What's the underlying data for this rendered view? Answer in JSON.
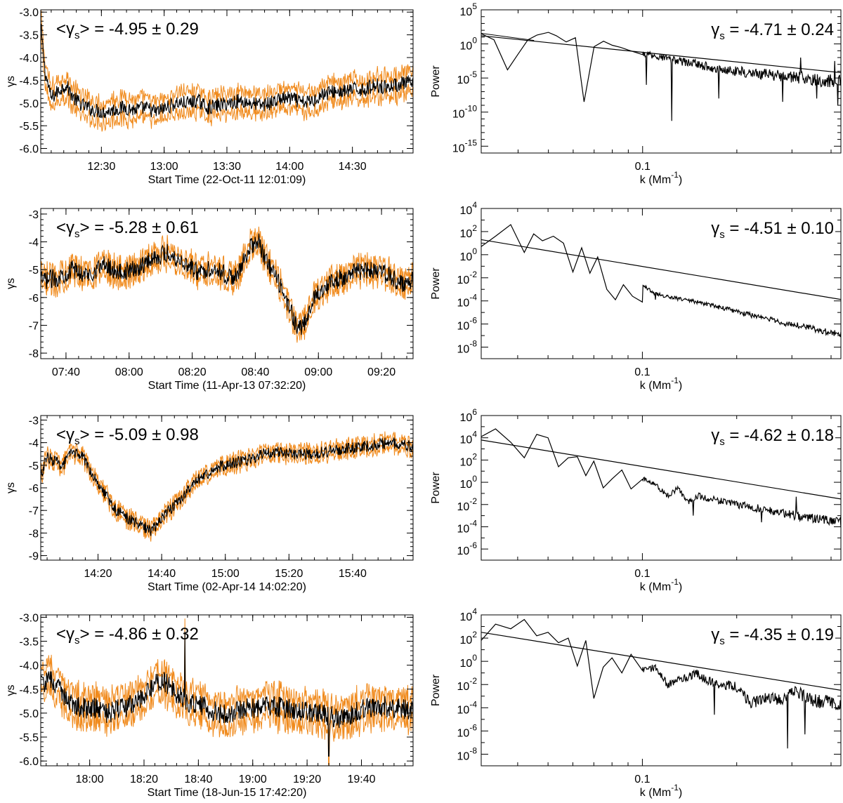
{
  "chart_data": [
    {
      "type": "line",
      "panel": "time-series",
      "row": 1,
      "title": "",
      "xlabel": "Start Time (22-Oct-11 12:01:09)",
      "ylabel": "γs",
      "annotation": {
        "prefix": "<γ",
        "sub": "s",
        "suffix": "> = -4.95 ± 0.29"
      },
      "xlim_min": [
        0,
        178
      ],
      "xtick_min": [
        29,
        59,
        89,
        119,
        149
      ],
      "xtick_labels": [
        "12:30",
        "13:00",
        "13:30",
        "14:00",
        "14:30"
      ],
      "ylim": [
        -6.1,
        -2.95
      ],
      "yticks": [
        -6.0,
        -5.5,
        -5.0,
        -4.5,
        -4.0,
        -3.5,
        -3.0
      ],
      "ytick_labels": [
        "-6.0",
        "-5.5",
        "-5.0",
        "-4.5",
        "-4.0",
        "-3.5",
        "-3.0"
      ],
      "x": [
        0,
        2,
        5,
        8,
        12,
        16,
        20,
        25,
        30,
        35,
        40,
        45,
        50,
        55,
        60,
        65,
        70,
        75,
        80,
        85,
        90,
        95,
        100,
        105,
        110,
        115,
        120,
        125,
        130,
        135,
        140,
        145,
        150,
        155,
        160,
        165,
        170,
        175,
        178
      ],
      "series": [
        {
          "name": "uncertainty",
          "color": "#f08a1c",
          "spread": 0.22
        },
        {
          "name": "gamma_s",
          "color": "#000000",
          "values": [
            -3.3,
            -4.3,
            -4.9,
            -4.75,
            -4.6,
            -4.9,
            -5.05,
            -5.15,
            -5.2,
            -5.15,
            -5.1,
            -5.15,
            -5.1,
            -5.2,
            -5.1,
            -5.0,
            -5.0,
            -4.95,
            -5.1,
            -5.05,
            -5.0,
            -4.95,
            -5.0,
            -5.05,
            -5.0,
            -4.9,
            -4.9,
            -5.0,
            -4.95,
            -4.8,
            -4.75,
            -4.75,
            -4.7,
            -4.7,
            -4.6,
            -4.65,
            -4.6,
            -4.55,
            -4.6
          ],
          "noise": 0.16
        }
      ]
    },
    {
      "type": "line",
      "panel": "power-spectrum",
      "row": 1,
      "xlabel": "k (Mm",
      "xlabel_sup": "-1",
      "xlabel_end": ")",
      "ylabel": "Power",
      "annotation": {
        "prefix": "γ",
        "sub": "s",
        "suffix": " = -4.71 ± 0.24"
      },
      "xscale": "log",
      "yscale": "log",
      "xlim": [
        0.0305,
        0.43
      ],
      "xtick_major": [
        0.1
      ],
      "xtick_major_labels": [
        "0.1"
      ],
      "ylim_exp": [
        -16,
        5
      ],
      "ytick_exps": [
        5,
        0,
        -5,
        -10,
        -15
      ],
      "ytick_mant": [
        "10",
        "10",
        "10",
        "10",
        "10"
      ],
      "ytick_sup": [
        "5",
        "0",
        "-5",
        "-10",
        "-15"
      ],
      "fit": {
        "slope": -4.71,
        "log10_at_kmin": 1.2
      },
      "spectrum": {
        "k": [
          0.0305,
          0.0335,
          0.037,
          0.04,
          0.043,
          0.046,
          0.05,
          0.053,
          0.057,
          0.061,
          0.065,
          0.07,
          0.075,
          0.08,
          0.085,
          0.09,
          0.1,
          0.11,
          0.12,
          0.13,
          0.14,
          0.15,
          0.16,
          0.17,
          0.18,
          0.2,
          0.22,
          0.25,
          0.28,
          0.31,
          0.35,
          0.39,
          0.43
        ],
        "log10_power": [
          1.5,
          0.6,
          -3.8,
          -1.5,
          0.6,
          1.3,
          1.7,
          1.2,
          0.3,
          0.9,
          -0.6,
          -0.4,
          0.4,
          -0.2,
          -0.5,
          -0.9,
          -1.3,
          -1.8,
          -2.2,
          -2.5,
          -2.7,
          -3.0,
          -3.3,
          -3.5,
          -3.8,
          -4.0,
          -4.3,
          -4.5,
          -4.8,
          -4.9,
          -5.2,
          -5.4,
          -5.6
        ],
        "dips": [
          {
            "k": 0.066,
            "log10": -8.5
          },
          {
            "k": 0.103,
            "log10": -6.0
          },
          {
            "k": 0.124,
            "log10": -11.3
          },
          {
            "k": 0.175,
            "log10": -8.0
          },
          {
            "k": 0.28,
            "log10": -8.5
          },
          {
            "k": 0.36,
            "log10": -8.0
          },
          {
            "k": 0.42,
            "log10": -9.0
          }
        ],
        "peaks": [
          {
            "k": 0.32,
            "log10": -2.0
          },
          {
            "k": 0.41,
            "log10": -2.5
          }
        ],
        "noise": 0.9
      }
    },
    {
      "type": "line",
      "panel": "time-series",
      "row": 2,
      "title": "",
      "xlabel": "Start Time (11-Apr-13 07:32:20)",
      "ylabel": "γs",
      "annotation": {
        "prefix": "<γ",
        "sub": "s",
        "suffix": "> = -5.28 ± 0.61"
      },
      "xlim_min": [
        0,
        118
      ],
      "xtick_min": [
        8,
        28,
        48,
        68,
        88,
        108
      ],
      "xtick_labels": [
        "07:40",
        "08:00",
        "08:20",
        "08:40",
        "09:00",
        "09:20"
      ],
      "ylim": [
        -8.2,
        -2.8
      ],
      "yticks": [
        -8,
        -7,
        -6,
        -5,
        -4,
        -3
      ],
      "ytick_labels": [
        "-8",
        "-7",
        "-6",
        "-5",
        "-4",
        "-3"
      ],
      "x": [
        0,
        5,
        10,
        15,
        20,
        25,
        30,
        35,
        40,
        45,
        50,
        55,
        60,
        63,
        66,
        69,
        71,
        73,
        75,
        77,
        79,
        81,
        83,
        85,
        87,
        90,
        95,
        100,
        105,
        110,
        115,
        118
      ],
      "series": [
        {
          "name": "uncertainty",
          "color": "#f08a1c",
          "spread": 0.28
        },
        {
          "name": "gamma_s",
          "color": "#000000",
          "values": [
            -5.4,
            -5.3,
            -5.0,
            -5.2,
            -4.8,
            -5.1,
            -5.0,
            -4.6,
            -4.4,
            -4.7,
            -5.1,
            -4.9,
            -5.3,
            -5.1,
            -4.2,
            -4.0,
            -4.6,
            -5.0,
            -5.4,
            -5.9,
            -6.4,
            -7.0,
            -7.1,
            -6.6,
            -5.9,
            -5.6,
            -5.3,
            -5.1,
            -5.0,
            -5.2,
            -5.6,
            -5.3
          ],
          "noise": 0.34
        }
      ]
    },
    {
      "type": "line",
      "panel": "power-spectrum",
      "row": 2,
      "xlabel": "k (Mm",
      "xlabel_sup": "-1",
      "xlabel_end": ")",
      "ylabel": "Power",
      "annotation": {
        "prefix": "γ",
        "sub": "s",
        "suffix": " = -4.51 ± 0.10"
      },
      "xscale": "log",
      "yscale": "log",
      "xlim": [
        0.0306,
        0.43
      ],
      "xtick_major": [
        0.1
      ],
      "xtick_major_labels": [
        "0.1"
      ],
      "ylim_exp": [
        -9,
        4
      ],
      "ytick_exps": [
        4,
        2,
        0,
        -2,
        -4,
        -6,
        -8
      ],
      "ytick_mant": [
        "10",
        "10",
        "10",
        "10",
        "10",
        "10",
        "10"
      ],
      "ytick_sup": [
        "4",
        "2",
        "0",
        "-2",
        "-4",
        "-6",
        "-8"
      ],
      "fit": {
        "slope": -4.51,
        "log10_at_kmin": 1.3
      },
      "spectrum": {
        "k": [
          0.0306,
          0.034,
          0.038,
          0.042,
          0.045,
          0.048,
          0.052,
          0.056,
          0.06,
          0.064,
          0.068,
          0.072,
          0.077,
          0.082,
          0.087,
          0.093,
          0.1,
          0.11,
          0.12,
          0.13,
          0.14,
          0.16,
          0.18,
          0.2,
          0.22,
          0.25,
          0.28,
          0.31,
          0.35,
          0.39,
          0.43
        ],
        "log10_power": [
          0.7,
          1.6,
          2.6,
          0.2,
          1.8,
          1.2,
          1.6,
          1.0,
          -1.5,
          0.6,
          -1.6,
          -0.2,
          -3.0,
          -1.8,
          -2.6,
          -3.6,
          -2.6,
          -3.4,
          -3.6,
          -3.8,
          -3.9,
          -4.3,
          -4.6,
          -4.9,
          -5.2,
          -5.5,
          -5.9,
          -6.1,
          -6.4,
          -6.7,
          -6.9
        ],
        "dips": [
          {
            "k": 0.081,
            "log10": -3.9
          },
          {
            "k": 0.098,
            "log10": -4.1
          },
          {
            "k": 0.11,
            "log10": -3.9
          }
        ],
        "peaks": [],
        "noise": 0.25
      }
    },
    {
      "type": "line",
      "panel": "time-series",
      "row": 3,
      "title": "",
      "xlabel": "Start Time (02-Apr-14 14:02:20)",
      "ylabel": "γs",
      "annotation": {
        "prefix": "<γ",
        "sub": "s",
        "suffix": "> = -5.09 ± 0.98"
      },
      "xlim_min": [
        0,
        117
      ],
      "xtick_min": [
        18,
        38,
        58,
        78,
        98
      ],
      "xtick_labels": [
        "14:20",
        "14:40",
        "15:00",
        "15:20",
        "15:40"
      ],
      "ylim": [
        -9.2,
        -2.8
      ],
      "yticks": [
        -9,
        -8,
        -7,
        -6,
        -5,
        -4,
        -3
      ],
      "ytick_labels": [
        "-9",
        "-8",
        "-7",
        "-6",
        "-5",
        "-4",
        "-3"
      ],
      "x": [
        0,
        2,
        4,
        7,
        10,
        13,
        16,
        20,
        23,
        26,
        29,
        32,
        35,
        38,
        41,
        44,
        47,
        50,
        55,
        60,
        65,
        70,
        75,
        80,
        85,
        90,
        95,
        100,
        105,
        110,
        115,
        117
      ],
      "series": [
        {
          "name": "uncertainty",
          "color": "#f08a1c",
          "spread": 0.22
        },
        {
          "name": "gamma_s",
          "color": "#000000",
          "values": [
            -5.5,
            -4.6,
            -4.8,
            -5.0,
            -4.4,
            -4.6,
            -5.3,
            -6.2,
            -6.9,
            -7.2,
            -7.5,
            -7.7,
            -7.9,
            -7.3,
            -6.9,
            -6.5,
            -6.0,
            -5.6,
            -5.1,
            -4.9,
            -4.8,
            -4.5,
            -4.4,
            -4.5,
            -4.5,
            -4.4,
            -4.3,
            -4.2,
            -4.1,
            -4.0,
            -4.1,
            -4.2
          ],
          "noise": 0.26
        }
      ]
    },
    {
      "type": "line",
      "panel": "power-spectrum",
      "row": 3,
      "xlabel": "k (Mm",
      "xlabel_sup": "-1",
      "xlabel_end": ")",
      "ylabel": "Power",
      "annotation": {
        "prefix": "γ",
        "sub": "s",
        "suffix": " = -4.62 ± 0.18"
      },
      "xscale": "log",
      "yscale": "log",
      "xlim": [
        0.0306,
        0.43
      ],
      "xtick_major": [
        0.1
      ],
      "xtick_major_labels": [
        "0.1"
      ],
      "ylim_exp": [
        -7,
        6
      ],
      "ytick_exps": [
        6,
        4,
        2,
        0,
        -2,
        -4,
        -6
      ],
      "ytick_mant": [
        "10",
        "10",
        "10",
        "10",
        "10",
        "10",
        "10"
      ],
      "ytick_sup": [
        "6",
        "4",
        "2",
        "0",
        "-2",
        "-4",
        "-6"
      ],
      "fit": {
        "slope": -4.62,
        "log10_at_kmin": 3.8
      },
      "spectrum": {
        "k": [
          0.0306,
          0.034,
          0.038,
          0.042,
          0.046,
          0.05,
          0.054,
          0.058,
          0.062,
          0.066,
          0.07,
          0.075,
          0.08,
          0.086,
          0.092,
          0.1,
          0.11,
          0.12,
          0.13,
          0.14,
          0.15,
          0.16,
          0.18,
          0.2,
          0.22,
          0.25,
          0.28,
          0.31,
          0.35,
          0.39,
          0.43
        ],
        "log10_power": [
          4.1,
          4.8,
          3.6,
          2.2,
          4.3,
          4.0,
          1.4,
          2.2,
          2.3,
          0.6,
          1.9,
          -0.5,
          0.3,
          1.1,
          -0.6,
          0.3,
          -0.2,
          -1.2,
          -0.6,
          -1.8,
          -1.2,
          -1.4,
          -1.7,
          -2.0,
          -2.2,
          -2.5,
          -2.7,
          -3.0,
          -3.2,
          -3.4,
          -3.6
        ],
        "dips": [
          {
            "k": 0.145,
            "log10": -3.0
          },
          {
            "k": 0.24,
            "log10": -3.6
          }
        ],
        "peaks": [
          {
            "k": 0.31,
            "log10": -1.3
          }
        ],
        "noise": 0.4
      }
    },
    {
      "type": "line",
      "panel": "time-series",
      "row": 4,
      "title": "",
      "xlabel": "Start Time (18-Jun-15 17:42:20)",
      "ylabel": "γs",
      "annotation": {
        "prefix": "<γ",
        "sub": "s",
        "suffix": "> = -4.86 ± 0.32"
      },
      "xlim_min": [
        0,
        137
      ],
      "xtick_min": [
        18,
        38,
        58,
        78,
        98,
        118
      ],
      "xtick_labels": [
        "18:00",
        "18:20",
        "18:40",
        "19:00",
        "19:20",
        "19:40"
      ],
      "ylim": [
        -6.1,
        -2.95
      ],
      "yticks": [
        -6.0,
        -5.5,
        -5.0,
        -4.5,
        -4.0,
        -3.5,
        -3.0
      ],
      "ytick_labels": [
        "-6.0",
        "-5.5",
        "-5.0",
        "-4.5",
        "-4.0",
        "-3.5",
        "-3.0"
      ],
      "x": [
        0,
        4,
        8,
        12,
        16,
        20,
        25,
        30,
        35,
        40,
        45,
        50,
        55,
        60,
        65,
        70,
        75,
        80,
        85,
        90,
        95,
        100,
        105,
        110,
        115,
        120,
        125,
        130,
        137
      ],
      "series": [
        {
          "name": "uncertainty",
          "color": "#f08a1c",
          "spread": 0.26
        },
        {
          "name": "gamma_s",
          "color": "#000000",
          "values": [
            -4.4,
            -4.3,
            -4.6,
            -4.8,
            -4.9,
            -4.9,
            -5.0,
            -4.9,
            -4.8,
            -4.5,
            -4.3,
            -4.6,
            -4.8,
            -4.85,
            -5.0,
            -5.0,
            -4.9,
            -4.9,
            -4.85,
            -4.9,
            -4.95,
            -5.0,
            -5.05,
            -5.1,
            -5.0,
            -4.9,
            -4.85,
            -4.9,
            -4.95
          ],
          "noise": 0.22,
          "spikes": [
            {
              "x": 53,
              "v": -3.3
            },
            {
              "x": 106,
              "v": -5.9
            }
          ]
        }
      ]
    },
    {
      "type": "line",
      "panel": "power-spectrum",
      "row": 4,
      "xlabel": "k (Mm",
      "xlabel_sup": "-1",
      "xlabel_end": ")",
      "ylabel": "Power",
      "annotation": {
        "prefix": "γ",
        "sub": "s",
        "suffix": " = -4.35 ± 0.19"
      },
      "xscale": "log",
      "yscale": "log",
      "xlim": [
        0.0306,
        0.43
      ],
      "xtick_major": [
        0.1
      ],
      "xtick_major_labels": [
        "0.1"
      ],
      "ylim_exp": [
        -9,
        4
      ],
      "ytick_exps": [
        4,
        2,
        0,
        -2,
        -4,
        -6,
        -8
      ],
      "ytick_mant": [
        "10",
        "10",
        "10",
        "10",
        "10",
        "10",
        "10"
      ],
      "ytick_sup": [
        "4",
        "2",
        "0",
        "-2",
        "-4",
        "-6",
        "-8"
      ],
      "fit": {
        "slope": -4.35,
        "log10_at_kmin": 2.5
      },
      "spectrum": {
        "k": [
          0.0306,
          0.034,
          0.038,
          0.042,
          0.046,
          0.05,
          0.054,
          0.058,
          0.062,
          0.066,
          0.07,
          0.075,
          0.08,
          0.086,
          0.092,
          0.1,
          0.11,
          0.12,
          0.13,
          0.14,
          0.15,
          0.16,
          0.18,
          0.2,
          0.22,
          0.25,
          0.28,
          0.31,
          0.35,
          0.39,
          0.43
        ],
        "log10_power": [
          1.8,
          3.2,
          2.8,
          3.6,
          2.2,
          2.5,
          1.6,
          2.0,
          -0.4,
          1.8,
          -3.2,
          -0.5,
          0.3,
          -1.0,
          0.6,
          -0.8,
          -0.5,
          -2.0,
          -1.6,
          -1.3,
          -1.1,
          -1.6,
          -2.0,
          -2.2,
          -3.6,
          -3.2,
          -3.3,
          -2.6,
          -3.4,
          -3.5,
          -3.7
        ],
        "dips": [
          {
            "k": 0.17,
            "log10": -4.6
          },
          {
            "k": 0.29,
            "log10": -7.5
          },
          {
            "k": 0.33,
            "log10": -6.3
          }
        ],
        "peaks": [],
        "noise": 0.55
      }
    }
  ]
}
